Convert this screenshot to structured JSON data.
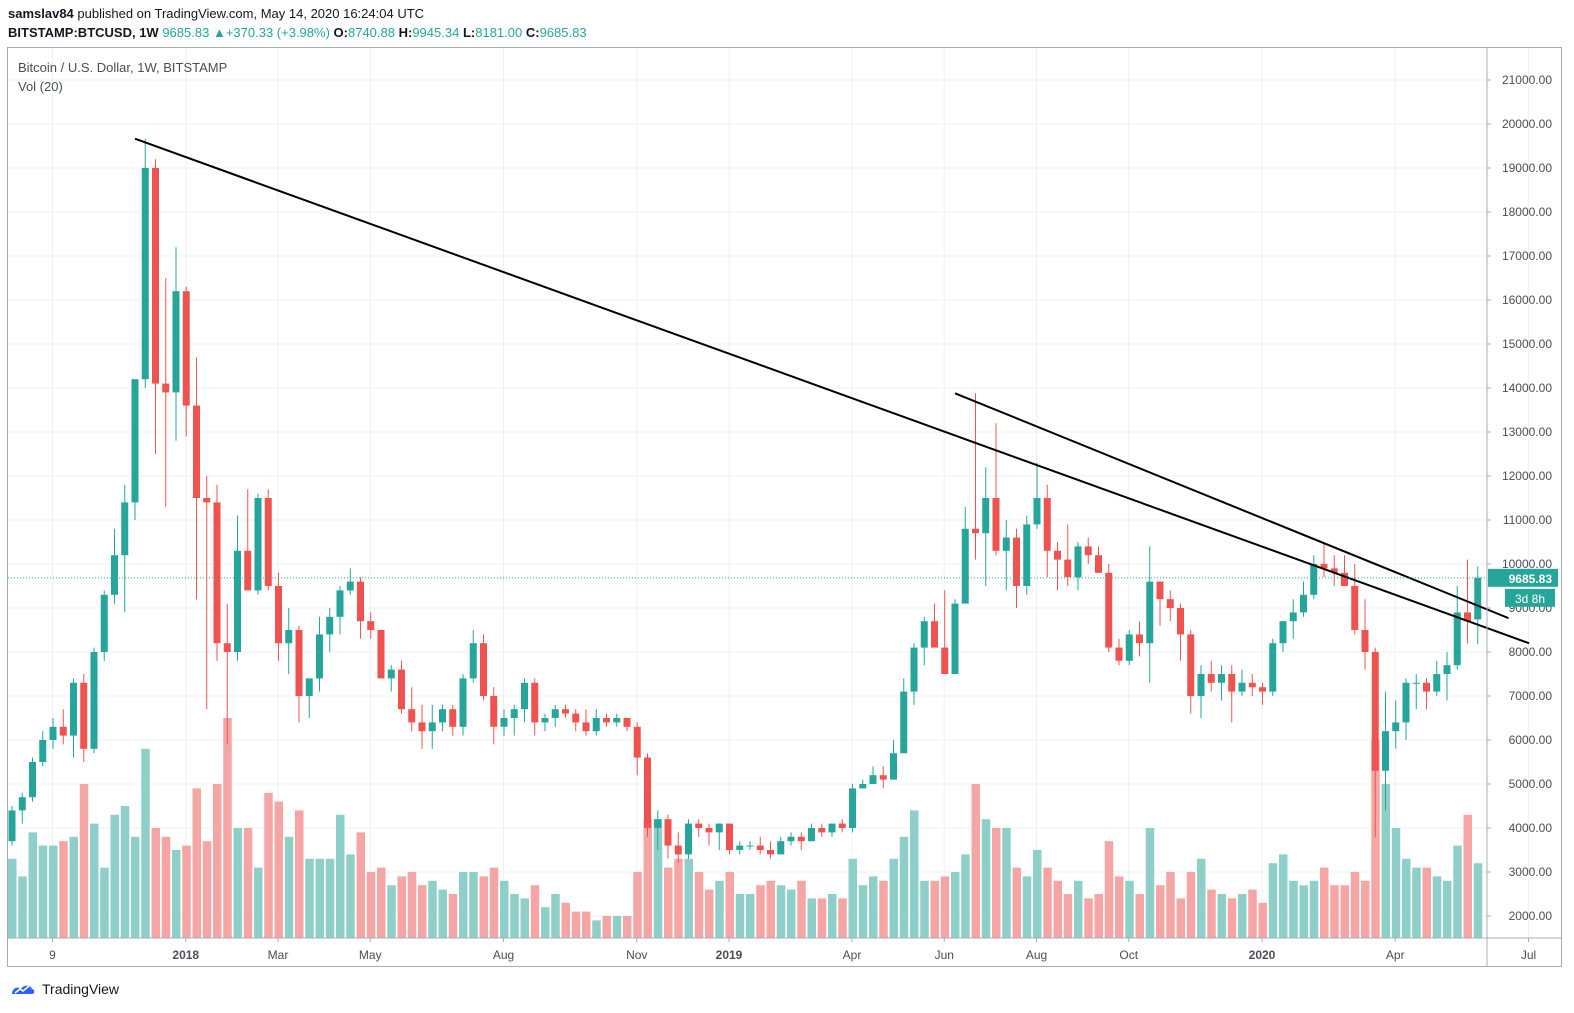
{
  "header": {
    "user": "samslav84",
    "published": " published on TradingView.com, May 14, 2020 16:24:04 UTC",
    "symbol": "BITSTAMP:BTCUSD, 1W",
    "last": "9685.83",
    "change": "+370.33 (+3.98%)",
    "o_label": "O:",
    "o_value": "8740.88",
    "h_label": "H:",
    "h_value": "9945.34",
    "l_label": "L:",
    "l_value": "8181.00",
    "c_label": "C:",
    "c_value": "9685.83"
  },
  "legend": {
    "title": "Bitcoin / U.S. Dollar, 1W, BITSTAMP",
    "volume": "Vol (20)"
  },
  "price_tag": "9685.83",
  "countdown_tag": "3d 8h",
  "brand": "TradingView",
  "colors": {
    "up": "#26a69a",
    "down": "#ef5350",
    "up_volume": "#8ed0c9",
    "down_volume": "#f5a6a4",
    "trendline": "#000000"
  },
  "chart_data": {
    "type": "candlestick",
    "title": "Bitcoin / U.S. Dollar, 1W, BITSTAMP",
    "y_ticks": [
      "21000.00",
      "20000.00",
      "19000.00",
      "18000.00",
      "17000.00",
      "16000.00",
      "15000.00",
      "14000.00",
      "13000.00",
      "12000.00",
      "11000.00",
      "10000.00",
      "9000.00",
      "8000.00",
      "7000.00",
      "6000.00",
      "5000.00",
      "4000.00",
      "3000.00",
      "2000.00"
    ],
    "ylim": [
      1500,
      21500
    ],
    "x_labels": [
      "9",
      "2018",
      "Mar",
      "May",
      "Aug",
      "Nov",
      "2019",
      "Apr",
      "Jun",
      "Aug",
      "Oct",
      "2020",
      "Apr",
      "Jul"
    ],
    "x_label_bold": [
      false,
      true,
      false,
      false,
      false,
      false,
      true,
      false,
      false,
      false,
      false,
      true,
      false,
      false
    ],
    "x_label_index": [
      2,
      15,
      24,
      33,
      46,
      59,
      68,
      80,
      89,
      98,
      107,
      120,
      133,
      146
    ],
    "current_price": 9685.83,
    "volume_baseline_price": 1500,
    "trendlines": [
      {
        "from_index": 12,
        "from_price": 19666,
        "to_index": 148,
        "to_price": 8200
      },
      {
        "from_index": 92,
        "from_price": 13880,
        "to_index": 146,
        "to_price": 8770
      }
    ],
    "candles": [
      {
        "o": 3700,
        "h": 4500,
        "l": 3600,
        "c": 4400,
        "v": 3300
      },
      {
        "o": 4400,
        "h": 4800,
        "l": 4100,
        "c": 4700,
        "v": 2900
      },
      {
        "o": 4700,
        "h": 5600,
        "l": 4600,
        "c": 5500,
        "v": 3900
      },
      {
        "o": 5500,
        "h": 6200,
        "l": 5400,
        "c": 6000,
        "v": 3600
      },
      {
        "o": 6000,
        "h": 6500,
        "l": 5800,
        "c": 6300,
        "v": 3600
      },
      {
        "o": 6300,
        "h": 6700,
        "l": 5900,
        "c": 6100,
        "v": 3700
      },
      {
        "o": 6100,
        "h": 7400,
        "l": 5600,
        "c": 7300,
        "v": 3800
      },
      {
        "o": 7300,
        "h": 7500,
        "l": 5500,
        "c": 5800,
        "v": 5000
      },
      {
        "o": 5800,
        "h": 8100,
        "l": 5700,
        "c": 8000,
        "v": 4100
      },
      {
        "o": 8000,
        "h": 9400,
        "l": 7800,
        "c": 9300,
        "v": 3100
      },
      {
        "o": 9300,
        "h": 10800,
        "l": 9100,
        "c": 10200,
        "v": 4300
      },
      {
        "o": 10200,
        "h": 11800,
        "l": 8900,
        "c": 11400,
        "v": 4500
      },
      {
        "o": 11400,
        "h": 14100,
        "l": 11000,
        "c": 14200,
        "v": 3800
      },
      {
        "o": 14200,
        "h": 19666,
        "l": 14000,
        "c": 19000,
        "v": 5800
      },
      {
        "o": 19000,
        "h": 19200,
        "l": 12500,
        "c": 14100,
        "v": 4000
      },
      {
        "o": 14100,
        "h": 16500,
        "l": 11300,
        "c": 13900,
        "v": 3800
      },
      {
        "o": 13900,
        "h": 17200,
        "l": 12800,
        "c": 16200,
        "v": 3500
      },
      {
        "o": 16200,
        "h": 16300,
        "l": 12900,
        "c": 13600,
        "v": 3600
      },
      {
        "o": 13600,
        "h": 14700,
        "l": 9200,
        "c": 11500,
        "v": 4900
      },
      {
        "o": 11500,
        "h": 12000,
        "l": 6700,
        "c": 11400,
        "v": 3700
      },
      {
        "o": 11400,
        "h": 11800,
        "l": 7800,
        "c": 8200,
        "v": 5000
      },
      {
        "o": 8200,
        "h": 9100,
        "l": 5900,
        "c": 8000,
        "v": 6500
      },
      {
        "o": 8000,
        "h": 11100,
        "l": 7800,
        "c": 10300,
        "v": 4000
      },
      {
        "o": 10300,
        "h": 11700,
        "l": 9600,
        "c": 9400,
        "v": 4000
      },
      {
        "o": 9400,
        "h": 11600,
        "l": 9300,
        "c": 11500,
        "v": 3100
      },
      {
        "o": 11500,
        "h": 11700,
        "l": 9400,
        "c": 9500,
        "v": 4800
      },
      {
        "o": 9500,
        "h": 9800,
        "l": 7800,
        "c": 8200,
        "v": 4600
      },
      {
        "o": 8200,
        "h": 9000,
        "l": 7500,
        "c": 8500,
        "v": 3800
      },
      {
        "o": 8500,
        "h": 8600,
        "l": 6400,
        "c": 7000,
        "v": 4400
      },
      {
        "o": 7000,
        "h": 7300,
        "l": 6500,
        "c": 7400,
        "v": 3300
      },
      {
        "o": 7400,
        "h": 8800,
        "l": 7100,
        "c": 8400,
        "v": 3300
      },
      {
        "o": 8400,
        "h": 9000,
        "l": 8000,
        "c": 8800,
        "v": 3300
      },
      {
        "o": 8800,
        "h": 9500,
        "l": 8400,
        "c": 9400,
        "v": 4300
      },
      {
        "o": 9400,
        "h": 9900,
        "l": 9300,
        "c": 9600,
        "v": 3400
      },
      {
        "o": 9600,
        "h": 9700,
        "l": 8300,
        "c": 8700,
        "v": 3900
      },
      {
        "o": 8700,
        "h": 8900,
        "l": 8300,
        "c": 8500,
        "v": 3000
      },
      {
        "o": 8500,
        "h": 8500,
        "l": 7400,
        "c": 7400,
        "v": 3100
      },
      {
        "o": 7400,
        "h": 7700,
        "l": 7100,
        "c": 7600,
        "v": 2700
      },
      {
        "o": 7600,
        "h": 7800,
        "l": 6600,
        "c": 6700,
        "v": 2900
      },
      {
        "o": 6700,
        "h": 7200,
        "l": 6200,
        "c": 6400,
        "v": 3000
      },
      {
        "o": 6400,
        "h": 6800,
        "l": 5800,
        "c": 6200,
        "v": 2700
      },
      {
        "o": 6200,
        "h": 6800,
        "l": 5800,
        "c": 6400,
        "v": 2800
      },
      {
        "o": 6400,
        "h": 6800,
        "l": 6200,
        "c": 6700,
        "v": 2600
      },
      {
        "o": 6700,
        "h": 6800,
        "l": 6100,
        "c": 6300,
        "v": 2500
      },
      {
        "o": 6300,
        "h": 7500,
        "l": 6100,
        "c": 7400,
        "v": 3000
      },
      {
        "o": 7400,
        "h": 8500,
        "l": 7300,
        "c": 8200,
        "v": 3000
      },
      {
        "o": 8200,
        "h": 8400,
        "l": 6900,
        "c": 7000,
        "v": 2900
      },
      {
        "o": 7000,
        "h": 7200,
        "l": 5900,
        "c": 6300,
        "v": 3100
      },
      {
        "o": 6300,
        "h": 6700,
        "l": 6100,
        "c": 6500,
        "v": 2800
      },
      {
        "o": 6500,
        "h": 6800,
        "l": 6100,
        "c": 6700,
        "v": 2500
      },
      {
        "o": 6700,
        "h": 7400,
        "l": 6400,
        "c": 7300,
        "v": 2400
      },
      {
        "o": 7300,
        "h": 7400,
        "l": 6100,
        "c": 6400,
        "v": 2700
      },
      {
        "o": 6400,
        "h": 6600,
        "l": 6200,
        "c": 6500,
        "v": 2200
      },
      {
        "o": 6500,
        "h": 6800,
        "l": 6300,
        "c": 6700,
        "v": 2500
      },
      {
        "o": 6700,
        "h": 6800,
        "l": 6500,
        "c": 6600,
        "v": 2300
      },
      {
        "o": 6600,
        "h": 6700,
        "l": 6200,
        "c": 6400,
        "v": 2100
      },
      {
        "o": 6400,
        "h": 6700,
        "l": 6100,
        "c": 6200,
        "v": 2100
      },
      {
        "o": 6200,
        "h": 6700,
        "l": 6100,
        "c": 6500,
        "v": 1900
      },
      {
        "o": 6500,
        "h": 6600,
        "l": 6300,
        "c": 6400,
        "v": 2000
      },
      {
        "o": 6400,
        "h": 6600,
        "l": 6300,
        "c": 6500,
        "v": 2000
      },
      {
        "o": 6500,
        "h": 6500,
        "l": 6200,
        "c": 6300,
        "v": 2000
      },
      {
        "o": 6300,
        "h": 6400,
        "l": 5200,
        "c": 5600,
        "v": 3000
      },
      {
        "o": 5600,
        "h": 5700,
        "l": 3800,
        "c": 4000,
        "v": 4200
      },
      {
        "o": 4000,
        "h": 4400,
        "l": 3500,
        "c": 4200,
        "v": 4200
      },
      {
        "o": 4200,
        "h": 4300,
        "l": 3300,
        "c": 3600,
        "v": 3100
      },
      {
        "o": 3600,
        "h": 3900,
        "l": 3200,
        "c": 3400,
        "v": 3300
      },
      {
        "o": 3400,
        "h": 4200,
        "l": 3300,
        "c": 4100,
        "v": 3300
      },
      {
        "o": 4100,
        "h": 4200,
        "l": 3800,
        "c": 4000,
        "v": 3000
      },
      {
        "o": 4000,
        "h": 4100,
        "l": 3600,
        "c": 3900,
        "v": 2600
      },
      {
        "o": 3900,
        "h": 4100,
        "l": 3500,
        "c": 4100,
        "v": 2800
      },
      {
        "o": 4100,
        "h": 4100,
        "l": 3400,
        "c": 3500,
        "v": 3000
      },
      {
        "o": 3500,
        "h": 3700,
        "l": 3400,
        "c": 3600,
        "v": 2500
      },
      {
        "o": 3600,
        "h": 3700,
        "l": 3500,
        "c": 3600,
        "v": 2500
      },
      {
        "o": 3600,
        "h": 3800,
        "l": 3400,
        "c": 3500,
        "v": 2700
      },
      {
        "o": 3500,
        "h": 3700,
        "l": 3300,
        "c": 3400,
        "v": 2800
      },
      {
        "o": 3400,
        "h": 3800,
        "l": 3400,
        "c": 3700,
        "v": 2700
      },
      {
        "o": 3700,
        "h": 3900,
        "l": 3600,
        "c": 3800,
        "v": 2600
      },
      {
        "o": 3800,
        "h": 3900,
        "l": 3500,
        "c": 3700,
        "v": 2800
      },
      {
        "o": 3700,
        "h": 4100,
        "l": 3700,
        "c": 4000,
        "v": 2400
      },
      {
        "o": 4000,
        "h": 4100,
        "l": 3800,
        "c": 3900,
        "v": 2400
      },
      {
        "o": 3900,
        "h": 4100,
        "l": 3800,
        "c": 4100,
        "v": 2500
      },
      {
        "o": 4100,
        "h": 4200,
        "l": 3900,
        "c": 4000,
        "v": 2400
      },
      {
        "o": 4000,
        "h": 5000,
        "l": 3900,
        "c": 4900,
        "v": 3300
      },
      {
        "o": 4900,
        "h": 5100,
        "l": 4900,
        "c": 5000,
        "v": 2700
      },
      {
        "o": 5000,
        "h": 5400,
        "l": 5000,
        "c": 5200,
        "v": 2900
      },
      {
        "o": 5200,
        "h": 5400,
        "l": 4900,
        "c": 5100,
        "v": 2800
      },
      {
        "o": 5100,
        "h": 6000,
        "l": 5100,
        "c": 5700,
        "v": 3300
      },
      {
        "o": 5700,
        "h": 7400,
        "l": 5700,
        "c": 7100,
        "v": 3800
      },
      {
        "o": 7100,
        "h": 8200,
        "l": 6800,
        "c": 8100,
        "v": 4400
      },
      {
        "o": 8100,
        "h": 8800,
        "l": 7700,
        "c": 8700,
        "v": 2800
      },
      {
        "o": 8700,
        "h": 9100,
        "l": 8200,
        "c": 8100,
        "v": 2800
      },
      {
        "o": 8100,
        "h": 9400,
        "l": 7500,
        "c": 7500,
        "v": 2900
      },
      {
        "o": 7500,
        "h": 9200,
        "l": 7500,
        "c": 9100,
        "v": 3000
      },
      {
        "o": 9100,
        "h": 11300,
        "l": 9100,
        "c": 10800,
        "v": 3400
      },
      {
        "o": 10800,
        "h": 13880,
        "l": 10100,
        "c": 10700,
        "v": 5000
      },
      {
        "o": 10700,
        "h": 12200,
        "l": 9500,
        "c": 11500,
        "v": 4200
      },
      {
        "o": 11500,
        "h": 13200,
        "l": 10200,
        "c": 10300,
        "v": 4000
      },
      {
        "o": 10300,
        "h": 11000,
        "l": 9400,
        "c": 10600,
        "v": 4000
      },
      {
        "o": 10600,
        "h": 10800,
        "l": 9000,
        "c": 9500,
        "v": 3100
      },
      {
        "o": 9500,
        "h": 11100,
        "l": 9300,
        "c": 10900,
        "v": 2900
      },
      {
        "o": 10900,
        "h": 12300,
        "l": 10800,
        "c": 11500,
        "v": 3500
      },
      {
        "o": 11500,
        "h": 11800,
        "l": 9700,
        "c": 10300,
        "v": 3100
      },
      {
        "o": 10300,
        "h": 10500,
        "l": 9400,
        "c": 10100,
        "v": 2800
      },
      {
        "o": 10100,
        "h": 10900,
        "l": 9500,
        "c": 9700,
        "v": 2500
      },
      {
        "o": 9700,
        "h": 10500,
        "l": 9400,
        "c": 10400,
        "v": 2800
      },
      {
        "o": 10400,
        "h": 10600,
        "l": 10000,
        "c": 10200,
        "v": 2400
      },
      {
        "o": 10200,
        "h": 10400,
        "l": 9800,
        "c": 9800,
        "v": 2500
      },
      {
        "o": 9800,
        "h": 10000,
        "l": 8000,
        "c": 8100,
        "v": 3700
      },
      {
        "o": 8100,
        "h": 8300,
        "l": 7700,
        "c": 7800,
        "v": 2900
      },
      {
        "o": 7800,
        "h": 8500,
        "l": 7700,
        "c": 8400,
        "v": 2800
      },
      {
        "o": 8400,
        "h": 8700,
        "l": 7900,
        "c": 8200,
        "v": 2500
      },
      {
        "o": 8200,
        "h": 10400,
        "l": 7300,
        "c": 9600,
        "v": 4000
      },
      {
        "o": 9600,
        "h": 9600,
        "l": 8600,
        "c": 9200,
        "v": 2700
      },
      {
        "o": 9200,
        "h": 9400,
        "l": 8700,
        "c": 9000,
        "v": 3000
      },
      {
        "o": 9000,
        "h": 9100,
        "l": 7800,
        "c": 8400,
        "v": 2400
      },
      {
        "o": 8400,
        "h": 8500,
        "l": 6600,
        "c": 7000,
        "v": 3000
      },
      {
        "o": 7000,
        "h": 7700,
        "l": 6500,
        "c": 7500,
        "v": 3300
      },
      {
        "o": 7500,
        "h": 7800,
        "l": 7100,
        "c": 7300,
        "v": 2600
      },
      {
        "o": 7300,
        "h": 7700,
        "l": 6900,
        "c": 7500,
        "v": 2500
      },
      {
        "o": 7500,
        "h": 7700,
        "l": 6400,
        "c": 7100,
        "v": 2400
      },
      {
        "o": 7100,
        "h": 7600,
        "l": 7000,
        "c": 7300,
        "v": 2500
      },
      {
        "o": 7300,
        "h": 7500,
        "l": 7000,
        "c": 7200,
        "v": 2600
      },
      {
        "o": 7200,
        "h": 7300,
        "l": 6800,
        "c": 7100,
        "v": 2300
      },
      {
        "o": 7100,
        "h": 8300,
        "l": 7000,
        "c": 8200,
        "v": 3200
      },
      {
        "o": 8200,
        "h": 8700,
        "l": 8000,
        "c": 8700,
        "v": 3400
      },
      {
        "o": 8700,
        "h": 9200,
        "l": 8300,
        "c": 8900,
        "v": 2800
      },
      {
        "o": 8900,
        "h": 9600,
        "l": 8800,
        "c": 9300,
        "v": 2700
      },
      {
        "o": 9300,
        "h": 10200,
        "l": 9200,
        "c": 10000,
        "v": 2800
      },
      {
        "o": 10000,
        "h": 10500,
        "l": 9700,
        "c": 9900,
        "v": 3100
      },
      {
        "o": 9900,
        "h": 10200,
        "l": 9500,
        "c": 9800,
        "v": 2700
      },
      {
        "o": 9800,
        "h": 10200,
        "l": 9700,
        "c": 9500,
        "v": 2700
      },
      {
        "o": 9500,
        "h": 10000,
        "l": 8400,
        "c": 8500,
        "v": 3000
      },
      {
        "o": 8500,
        "h": 9200,
        "l": 7600,
        "c": 8000,
        "v": 2800
      },
      {
        "o": 8000,
        "h": 8100,
        "l": 3800,
        "c": 5300,
        "v": 6000
      },
      {
        "o": 5300,
        "h": 7100,
        "l": 4400,
        "c": 6200,
        "v": 5000
      },
      {
        "o": 6200,
        "h": 6900,
        "l": 5800,
        "c": 6400,
        "v": 4000
      },
      {
        "o": 6400,
        "h": 7400,
        "l": 6000,
        "c": 7300,
        "v": 3300
      },
      {
        "o": 7300,
        "h": 7500,
        "l": 6700,
        "c": 7300,
        "v": 3100
      },
      {
        "o": 7300,
        "h": 7400,
        "l": 6700,
        "c": 7100,
        "v": 3100
      },
      {
        "o": 7100,
        "h": 7800,
        "l": 7000,
        "c": 7500,
        "v": 2900
      },
      {
        "o": 7500,
        "h": 8000,
        "l": 6900,
        "c": 7700,
        "v": 2800
      },
      {
        "o": 7700,
        "h": 9500,
        "l": 7600,
        "c": 8900,
        "v": 3600
      },
      {
        "o": 8900,
        "h": 10100,
        "l": 8200,
        "c": 8700,
        "v": 4300
      },
      {
        "o": 8740.88,
        "h": 9945.34,
        "l": 8181,
        "c": 9685.83,
        "v": 3200
      }
    ]
  }
}
